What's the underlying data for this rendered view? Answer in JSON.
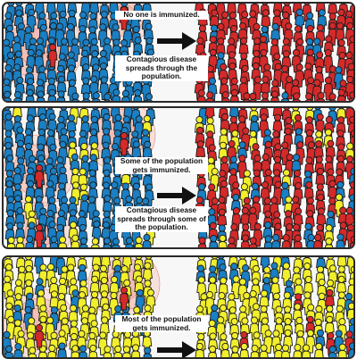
{
  "colors": {
    "healthy": "#1a7fc3",
    "infected": "#d42a2a",
    "immunized": "#f1ee2c",
    "outline": "#1b1b1b",
    "halo": "#f0b4a8",
    "panel_bg": "#f7f7f7"
  },
  "panels": [
    {
      "label": "no-immunization",
      "texts": [
        "No one is immunized.",
        "Contagious disease spreads through the population."
      ],
      "immunized_share": 0.0
    },
    {
      "label": "some-immunization",
      "texts": [
        "Some of the population gets immunized.",
        "Contagious disease spreads through some of the population."
      ],
      "immunized_share": 0.15
    },
    {
      "label": "most-immunization",
      "texts": [
        "Most of the population gets immunized.",
        ""
      ],
      "immunized_share": 0.8
    }
  ],
  "icons": {
    "arrow": "right-arrow-icon",
    "person": "person-icon"
  }
}
